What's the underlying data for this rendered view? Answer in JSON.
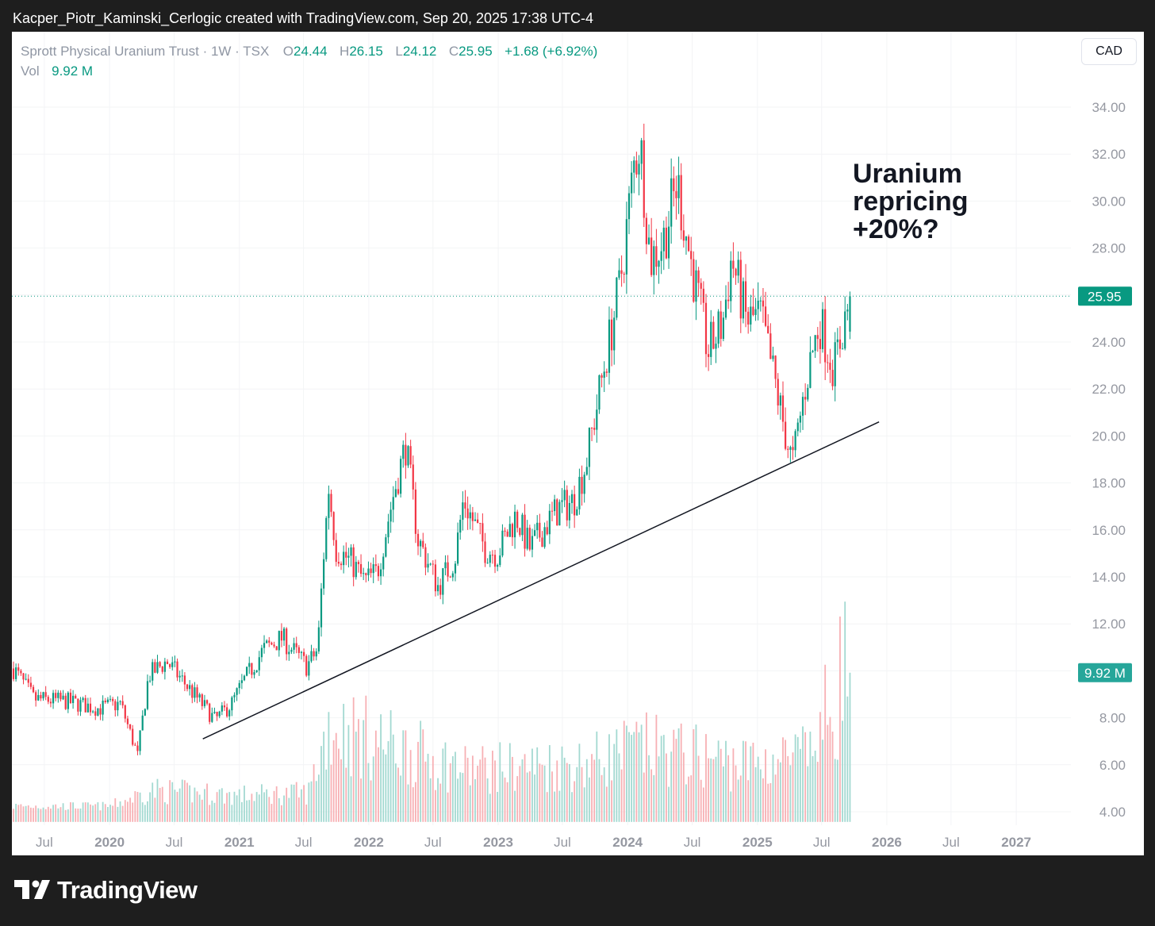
{
  "header": {
    "caption": "Kacper_Piotr_Kaminski_Cerlogic created with TradingView.com, Sep 20, 2025 17:38 UTC-4"
  },
  "legend": {
    "symbol": "Sprott Physical Uranium Trust · 1W · TSX",
    "open_label": "O",
    "open": "24.44",
    "high_label": "H",
    "high": "26.15",
    "low_label": "L",
    "low": "24.12",
    "close_label": "C",
    "close": "25.95",
    "change": "+1.68 (+6.92%)",
    "vol_label": "Vol",
    "vol": "9.92 M"
  },
  "currency": "CAD",
  "annotation": {
    "lines": [
      "Uranium",
      "repricing",
      "+20%?"
    ]
  },
  "brand": {
    "name": "TradingView"
  },
  "colors": {
    "up": "#089981",
    "down": "#f23645",
    "up_volume": "#a3d9d1",
    "down_volume": "#f7b0b4",
    "trendline": "#131722",
    "axis_text": "#9598a1"
  },
  "chart_data": {
    "type": "candlestick",
    "title": "Sprott Physical Uranium Trust · 1W · TSX",
    "currency": "CAD",
    "interval": "1W",
    "x_labels": [
      "Jul",
      "2020",
      "Jul",
      "2021",
      "Jul",
      "2022",
      "Jul",
      "2023",
      "Jul",
      "2024",
      "Jul",
      "2025",
      "Jul",
      "2026",
      "Jul",
      "2027"
    ],
    "y_ticks": [
      "34.00",
      "32.00",
      "30.00",
      "28.00",
      "26.00",
      "24.00",
      "22.00",
      "20.00",
      "18.00",
      "16.00",
      "14.00",
      "12.00",
      "10.00",
      "8.00",
      "6.00",
      "4.00"
    ],
    "ylim": [
      3.5,
      34.5
    ],
    "last_price_label": "25.95",
    "last_volume_label": "9.92 M",
    "last_bar": {
      "date": "2025-09-19",
      "open": 24.44,
      "high": 26.15,
      "low": 24.12,
      "close": 25.95,
      "volume_m": 9.92
    },
    "price_path": [
      [
        "2019-04-05",
        10.1
      ],
      [
        "2019-06-01",
        8.8
      ],
      [
        "2019-09-01",
        8.7
      ],
      [
        "2019-12-01",
        8.4
      ],
      [
        "2020-02-01",
        8.6
      ],
      [
        "2020-03-20",
        6.4
      ],
      [
        "2020-04-20",
        9.8
      ],
      [
        "2020-06-10",
        10.4
      ],
      [
        "2020-08-15",
        9.2
      ],
      [
        "2020-10-25",
        7.9
      ],
      [
        "2020-12-10",
        8.6
      ],
      [
        "2021-01-15",
        9.6
      ],
      [
        "2021-03-10",
        10.9
      ],
      [
        "2021-05-01",
        11.4
      ],
      [
        "2021-07-10",
        10.2
      ],
      [
        "2021-08-10",
        10.9
      ],
      [
        "2021-08-25",
        14.6
      ],
      [
        "2021-09-10",
        17.8
      ],
      [
        "2021-10-01",
        15.2
      ],
      [
        "2021-11-15",
        14.6
      ],
      [
        "2021-12-20",
        13.8
      ],
      [
        "2022-01-25",
        14.2
      ],
      [
        "2022-03-10",
        17.4
      ],
      [
        "2022-04-15",
        19.6
      ],
      [
        "2022-05-20",
        15.6
      ],
      [
        "2022-07-15",
        13.6
      ],
      [
        "2022-09-01",
        14.8
      ],
      [
        "2022-09-25",
        17.3
      ],
      [
        "2022-11-25",
        15.2
      ],
      [
        "2022-12-30",
        15.0
      ],
      [
        "2023-02-20",
        16.6
      ],
      [
        "2023-04-01",
        15.2
      ],
      [
        "2023-05-15",
        16.2
      ],
      [
        "2023-06-20",
        16.9
      ],
      [
        "2023-08-01",
        17.2
      ],
      [
        "2023-09-05",
        18.8
      ],
      [
        "2023-10-25",
        22.8
      ],
      [
        "2023-12-10",
        26.4
      ],
      [
        "2024-01-20",
        31.6
      ],
      [
        "2024-02-05",
        32.6
      ],
      [
        "2024-03-05",
        27.5
      ],
      [
        "2024-04-10",
        28.3
      ],
      [
        "2024-05-20",
        30.8
      ],
      [
        "2024-07-01",
        27.1
      ],
      [
        "2024-08-15",
        23.6
      ],
      [
        "2024-09-25",
        24.8
      ],
      [
        "2024-10-20",
        27.6
      ],
      [
        "2024-12-01",
        24.9
      ],
      [
        "2025-01-10",
        25.1
      ],
      [
        "2025-02-15",
        22.6
      ],
      [
        "2025-03-25",
        19.8
      ],
      [
        "2025-04-10",
        18.8
      ],
      [
        "2025-05-20",
        22.5
      ],
      [
        "2025-06-25",
        24.9
      ],
      [
        "2025-08-05",
        22.9
      ],
      [
        "2025-09-19",
        25.95
      ]
    ],
    "volume_path": [
      [
        "2019-04-05",
        4.2
      ],
      [
        "2020-01-01",
        4.2
      ],
      [
        "2020-05-01",
        4.8
      ],
      [
        "2021-01-01",
        4.6
      ],
      [
        "2021-07-15",
        4.7
      ],
      [
        "2021-09-10",
        7.2
      ],
      [
        "2022-03-01",
        6.5
      ],
      [
        "2022-10-01",
        5.6
      ],
      [
        "2023-09-01",
        5.8
      ],
      [
        "2024-02-01",
        6.4
      ],
      [
        "2024-12-01",
        5.8
      ],
      [
        "2025-06-01",
        6.1
      ],
      [
        "2025-09-19",
        9.92
      ]
    ],
    "trendline": {
      "start": [
        "2020-09-20",
        7.1
      ],
      "end": [
        "2025-12-10",
        20.6
      ]
    },
    "annotation": "Uranium repricing +20%?"
  }
}
